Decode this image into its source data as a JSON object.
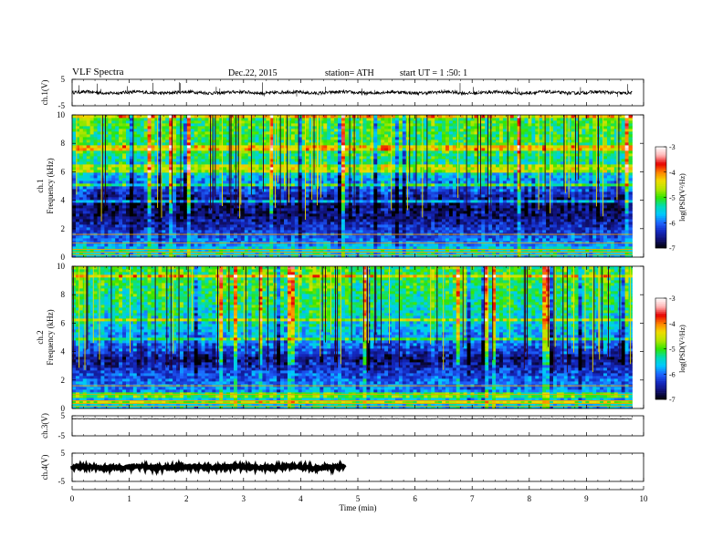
{
  "header": {
    "title": "VLF  Spectra",
    "date": "Dec.22, 2015",
    "station": "station= ATH",
    "start": "start  UT  =   1  :50: 1"
  },
  "colors": {
    "colormap": [
      "#000000",
      "#10106e",
      "#1428c0",
      "#1e64ff",
      "#00c8ff",
      "#00dcb4",
      "#32e600",
      "#b4e600",
      "#f0dc00",
      "#ff8200",
      "#e60000",
      "#ffb4b4",
      "#ffffff"
    ]
  },
  "chart_data": [
    {
      "type": "line",
      "ylabel": "ch.1(V)",
      "ylim": [
        -5,
        5
      ],
      "yticks": [
        "5",
        "-5"
      ],
      "xlim": [
        0,
        10
      ],
      "baseline": 0,
      "noise_amplitude": 0.6,
      "spike_count": 40,
      "spike_amplitude": 3
    },
    {
      "type": "heatmap",
      "label_channel": "ch.1",
      "ylabel": "Frequency  (kHz)",
      "ylim": [
        0,
        10
      ],
      "yticks": [
        "0",
        "2",
        "4",
        "6",
        "8",
        "10"
      ],
      "xlim": [
        0,
        10
      ],
      "data_end_min": 9.8,
      "colorbar": {
        "label": "log(PSD(V²/Hz)",
        "range": [
          -7,
          -3
        ],
        "ticks": [
          "-3",
          "-4",
          "-5",
          "-6",
          "-7"
        ]
      },
      "band_profile": [
        {
          "f": 0.0,
          "v": -5.6
        },
        {
          "f": 0.5,
          "v": -5.4
        },
        {
          "f": 1.0,
          "v": -5.9
        },
        {
          "f": 2.0,
          "v": -6.3
        },
        {
          "f": 2.8,
          "v": -6.6
        },
        {
          "f": 3.5,
          "v": -6.7
        },
        {
          "f": 4.2,
          "v": -6.5
        },
        {
          "f": 5.0,
          "v": -6.0
        },
        {
          "f": 6.0,
          "v": -5.5
        },
        {
          "f": 7.5,
          "v": -5.1
        },
        {
          "f": 10.0,
          "v": -5.0
        }
      ]
    },
    {
      "type": "heatmap",
      "label_channel": "ch.2",
      "ylabel": "Frequency  (kHz)",
      "ylim": [
        0,
        10
      ],
      "yticks": [
        "0",
        "2",
        "4",
        "6",
        "8",
        "10"
      ],
      "xlim": [
        0,
        10
      ],
      "data_end_min": 9.8,
      "colorbar": {
        "label": "log(PSD(V²/Hz)",
        "range": [
          -7,
          -3
        ],
        "ticks": [
          "-3",
          "-4",
          "-5",
          "-6",
          "-7"
        ]
      },
      "band_profile": [
        {
          "f": 0.0,
          "v": -5.6
        },
        {
          "f": 0.5,
          "v": -5.5
        },
        {
          "f": 1.0,
          "v": -5.8
        },
        {
          "f": 2.0,
          "v": -6.0
        },
        {
          "f": 2.8,
          "v": -6.3
        },
        {
          "f": 3.5,
          "v": -6.6
        },
        {
          "f": 4.2,
          "v": -6.1
        },
        {
          "f": 5.0,
          "v": -5.8
        },
        {
          "f": 6.0,
          "v": -5.5
        },
        {
          "f": 7.5,
          "v": -5.2
        },
        {
          "f": 10.0,
          "v": -5.0
        }
      ]
    },
    {
      "type": "line",
      "ylabel": "ch.3(V)",
      "ylim": [
        -5,
        5
      ],
      "yticks": [
        "5",
        "-5"
      ],
      "xlim": [
        0,
        10
      ],
      "baseline": 3.5,
      "noise_amplitude": 0.1,
      "spike_count": 0,
      "spike_amplitude": 0
    },
    {
      "type": "line",
      "ylabel": "ch.4(V)",
      "ylim": [
        -5,
        5
      ],
      "yticks": [
        "5",
        "-5"
      ],
      "xlim": [
        0,
        10
      ],
      "baseline": 0,
      "noise_amplitude": 0.5,
      "spike_count": 0,
      "spike_amplitude": 0,
      "gaps_min": [
        4.8,
        7.35,
        8.9,
        9.2
      ]
    }
  ],
  "x_axis": {
    "label": "Time  (min)",
    "ticks": [
      "0",
      "1",
      "2",
      "3",
      "4",
      "5",
      "6",
      "7",
      "8",
      "9",
      "10"
    ]
  }
}
